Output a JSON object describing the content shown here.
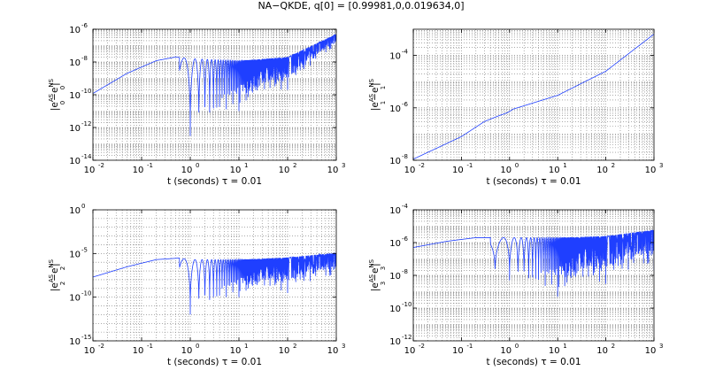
{
  "figure": {
    "title": "NA−QKDE, q[0] = [0.99981,0,0.019634,0]"
  },
  "chart_data": [
    {
      "type": "line",
      "id": "p0",
      "xlabel": "t   (seconds)   τ = 0.01",
      "ylabel": {
        "base": "|e",
        "sup1": "AS",
        "sub1": "0",
        "mid": "−e",
        "sup2": "NS",
        "sub2": "0",
        "end": "|"
      },
      "xscale": "log",
      "yscale": "log",
      "xlim": [
        0.01,
        1000
      ],
      "ylim": [
        1e-14,
        1e-06
      ],
      "xticks": {
        "values": [
          0.01,
          0.1,
          1,
          10,
          100,
          1000
        ],
        "exps": [
          "-2",
          "-1",
          "0",
          "1",
          "2",
          "3"
        ]
      },
      "yticks": {
        "values": [
          1e-14,
          1e-12,
          1e-10,
          1e-08,
          1e-06
        ],
        "exps": [
          "-14",
          "-12",
          "-10",
          "-8",
          "-6"
        ]
      },
      "grid": true,
      "series": [
        {
          "name": "error",
          "color": "#1f3fff",
          "anchors": [
            [
              0.01,
              1.2e-10
            ],
            [
              0.05,
              2e-09
            ],
            [
              0.2,
              1.2e-08
            ],
            [
              0.5,
              2e-08
            ],
            [
              1,
              1.6e-08
            ],
            [
              10,
              1.2e-08
            ],
            [
              100,
              2e-08
            ],
            [
              1000,
              5e-07
            ]
          ],
          "envelope_low": [
            [
              1,
              3e-13
            ],
            [
              3,
              3e-12
            ],
            [
              10,
              1e-11
            ],
            [
              100,
              2e-10
            ],
            [
              1000,
              8e-08
            ]
          ],
          "oscillation_start": 0.6
        }
      ]
    },
    {
      "type": "line",
      "id": "p1",
      "xlabel": "t   (seconds)   τ = 0.01",
      "ylabel": {
        "base": "|e",
        "sup1": "AS",
        "sub1": "1",
        "mid": "−e",
        "sup2": "NS",
        "sub2": "1",
        "end": "|"
      },
      "xscale": "log",
      "yscale": "log",
      "xlim": [
        0.01,
        1000
      ],
      "ylim": [
        1e-08,
        0.001
      ],
      "xticks": {
        "values": [
          0.01,
          0.1,
          1,
          10,
          100,
          1000
        ],
        "exps": [
          "-2",
          "-1",
          "0",
          "1",
          "2",
          "3"
        ]
      },
      "yticks": {
        "values": [
          1e-08,
          1e-06,
          0.0001
        ],
        "exps": [
          "-8",
          "-6",
          "-4"
        ]
      },
      "grid": true,
      "series": [
        {
          "name": "error",
          "color": "#1f3fff",
          "anchors": [
            [
              0.01,
              1.1e-08
            ],
            [
              0.1,
              8e-08
            ],
            [
              0.3,
              3e-07
            ],
            [
              0.6,
              5e-07
            ],
            [
              0.9,
              6.5e-07
            ],
            [
              1.2,
              9e-07
            ],
            [
              2,
              1.2e-06
            ],
            [
              10,
              3e-06
            ],
            [
              100,
              2.5e-05
            ],
            [
              1000,
              0.00065
            ]
          ],
          "envelope_low": [],
          "oscillation_start": 0
        }
      ]
    },
    {
      "type": "line",
      "id": "p2",
      "xlabel": "t   (seconds)   τ = 0.01",
      "ylabel": {
        "base": "|e",
        "sup1": "AS",
        "sub1": "2",
        "mid": "−e",
        "sup2": "NS",
        "sub2": "2",
        "end": "|"
      },
      "xscale": "log",
      "yscale": "log",
      "xlim": [
        0.01,
        1000
      ],
      "ylim": [
        1e-15,
        1
      ],
      "xticks": {
        "values": [
          0.01,
          0.1,
          1,
          10,
          100,
          1000
        ],
        "exps": [
          "-2",
          "-1",
          "0",
          "1",
          "2",
          "3"
        ]
      },
      "yticks": {
        "values": [
          1e-15,
          1e-10,
          1e-05,
          1
        ],
        "labels": [
          "10",
          "10",
          "10",
          "10"
        ],
        "exps": [
          "-15",
          "-10",
          "-5",
          "0"
        ]
      },
      "grid": true,
      "series": [
        {
          "name": "error",
          "color": "#1f3fff",
          "anchors": [
            [
              0.01,
              2e-08
            ],
            [
              0.05,
              3e-07
            ],
            [
              0.2,
              2e-06
            ],
            [
              0.6,
              3e-06
            ],
            [
              1,
              2e-06
            ],
            [
              10,
              2e-06
            ],
            [
              100,
              3.5e-06
            ],
            [
              1000,
              1.2e-05
            ]
          ],
          "envelope_low": [
            [
              1,
              1e-12
            ],
            [
              3,
              1e-11
            ],
            [
              10,
              1e-10
            ],
            [
              100,
              3e-10
            ],
            [
              1000,
              1e-08
            ]
          ],
          "oscillation_start": 0.6
        }
      ]
    },
    {
      "type": "line",
      "id": "p3",
      "xlabel": "t   (seconds)   τ = 0.01",
      "ylabel": {
        "base": "|e",
        "sup1": "AS",
        "sub1": "3",
        "mid": "−e",
        "sup2": "NS",
        "sub2": "3",
        "end": "|"
      },
      "xscale": "log",
      "yscale": "log",
      "xlim": [
        0.01,
        1000
      ],
      "ylim": [
        1e-12,
        0.0001
      ],
      "xticks": {
        "values": [
          0.01,
          0.1,
          1,
          10,
          100,
          1000
        ],
        "exps": [
          "-2",
          "-1",
          "0",
          "1",
          "2",
          "3"
        ]
      },
      "yticks": {
        "values": [
          1e-12,
          1e-10,
          1e-08,
          1e-06,
          0.0001
        ],
        "exps": [
          "-12",
          "-10",
          "-8",
          "-6",
          "-4"
        ]
      },
      "grid": true,
      "series": [
        {
          "name": "error",
          "color": "#1f3fff",
          "anchors": [
            [
              0.01,
              5e-07
            ],
            [
              0.05,
              1.2e-06
            ],
            [
              0.2,
              2e-06
            ],
            [
              0.4,
              2e-06
            ],
            [
              1,
              2e-06
            ],
            [
              10,
              2e-06
            ],
            [
              100,
              2.5e-06
            ],
            [
              1000,
              6e-06
            ]
          ],
          "envelope_low": [
            [
              0.5,
              1e-08
            ],
            [
              1,
              5e-09
            ],
            [
              3,
              2e-09
            ],
            [
              10,
              5e-10
            ],
            [
              30,
              1e-09
            ],
            [
              100,
              3e-09
            ],
            [
              1000,
              2e-08
            ]
          ],
          "oscillation_start": 0.4
        }
      ]
    }
  ]
}
